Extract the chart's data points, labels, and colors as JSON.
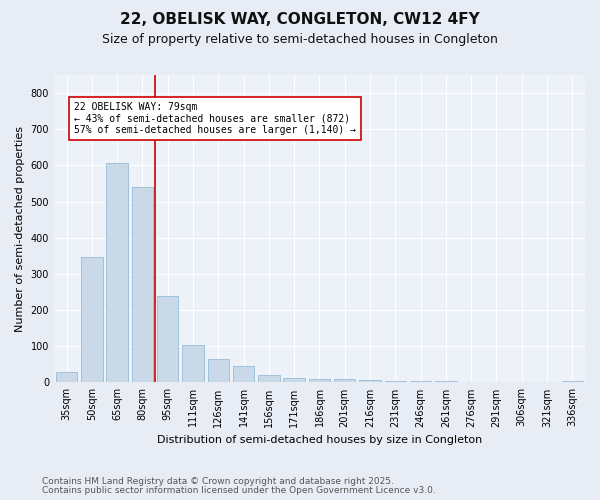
{
  "title": "22, OBELISK WAY, CONGLETON, CW12 4FY",
  "subtitle": "Size of property relative to semi-detached houses in Congleton",
  "xlabel": "Distribution of semi-detached houses by size in Congleton",
  "ylabel": "Number of semi-detached properties",
  "categories": [
    "35sqm",
    "50sqm",
    "65sqm",
    "80sqm",
    "95sqm",
    "111sqm",
    "126sqm",
    "141sqm",
    "156sqm",
    "171sqm",
    "186sqm",
    "201sqm",
    "216sqm",
    "231sqm",
    "246sqm",
    "261sqm",
    "276sqm",
    "291sqm",
    "306sqm",
    "321sqm",
    "336sqm"
  ],
  "values": [
    28,
    348,
    608,
    540,
    238,
    103,
    65,
    45,
    20,
    13,
    10,
    10,
    7,
    5,
    4,
    3,
    2,
    2,
    1,
    1,
    3
  ],
  "bar_color": "#c9d9e8",
  "bar_edge_color": "#8ab4d4",
  "vline_color": "#cc0000",
  "vline_pos": 3.5,
  "annotation_text": "22 OBELISK WAY: 79sqm\n← 43% of semi-detached houses are smaller (872)\n57% of semi-detached houses are larger (1,140) →",
  "annotation_box_color": "#ffffff",
  "annotation_box_edge": "#cc0000",
  "footer1": "Contains HM Land Registry data © Crown copyright and database right 2025.",
  "footer2": "Contains public sector information licensed under the Open Government Licence v3.0.",
  "ylim": [
    0,
    850
  ],
  "yticks": [
    0,
    100,
    200,
    300,
    400,
    500,
    600,
    700,
    800
  ],
  "bg_color": "#e8edf5",
  "plot_bg_color": "#edf2f8",
  "title_fontsize": 11,
  "subtitle_fontsize": 9,
  "axis_label_fontsize": 8,
  "tick_fontsize": 7,
  "annotation_fontsize": 7,
  "footer_fontsize": 6.5
}
